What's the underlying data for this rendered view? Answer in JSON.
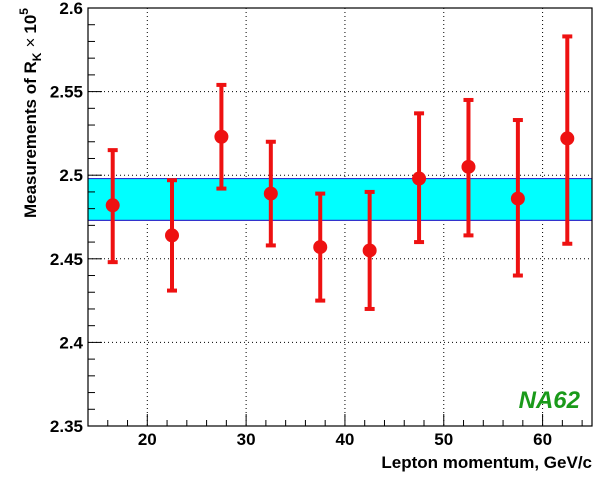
{
  "chart_data": {
    "type": "scatter",
    "title": "",
    "xlabel": "Lepton momentum, GeV/c",
    "ylabel": {
      "prefix": "Measurements of R",
      "subscript": "K",
      "times": "×",
      "base": "10",
      "exponent": "5"
    },
    "xlim": [
      14,
      65
    ],
    "ylim": [
      2.35,
      2.6
    ],
    "x_ticks": [
      "20",
      "30",
      "40",
      "50",
      "60"
    ],
    "y_ticks": [
      "2.35",
      "2.4",
      "2.45",
      "2.5",
      "2.55",
      "2.6"
    ],
    "grid": true,
    "band": {
      "low": 2.473,
      "high": 2.498,
      "color": "#00ffff",
      "edge_color": "#3333cc"
    },
    "series": [
      {
        "marker_color": "#ee1111",
        "points": [
          {
            "x": 16.5,
            "y": 2.482,
            "err_low": 2.448,
            "err_high": 2.515
          },
          {
            "x": 22.5,
            "y": 2.464,
            "err_low": 2.431,
            "err_high": 2.497
          },
          {
            "x": 27.5,
            "y": 2.523,
            "err_low": 2.492,
            "err_high": 2.554
          },
          {
            "x": 32.5,
            "y": 2.489,
            "err_low": 2.458,
            "err_high": 2.52
          },
          {
            "x": 37.5,
            "y": 2.457,
            "err_low": 2.425,
            "err_high": 2.489
          },
          {
            "x": 42.5,
            "y": 2.455,
            "err_low": 2.42,
            "err_high": 2.49
          },
          {
            "x": 47.5,
            "y": 2.498,
            "err_low": 2.46,
            "err_high": 2.537
          },
          {
            "x": 52.5,
            "y": 2.505,
            "err_low": 2.464,
            "err_high": 2.545
          },
          {
            "x": 57.5,
            "y": 2.486,
            "err_low": 2.44,
            "err_high": 2.533
          },
          {
            "x": 62.5,
            "y": 2.522,
            "err_low": 2.459,
            "err_high": 2.583
          }
        ]
      }
    ],
    "annotation": "NA62"
  }
}
